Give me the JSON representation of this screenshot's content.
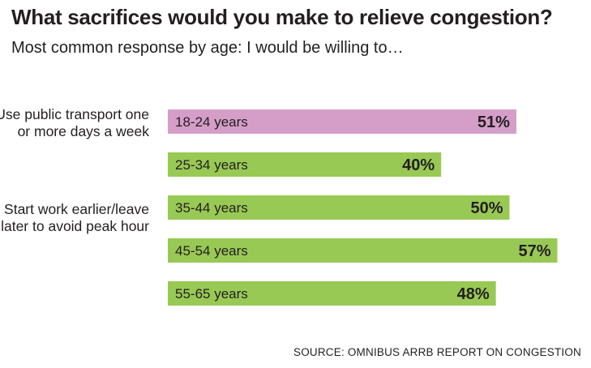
{
  "header": {
    "title": "What sacrifices would you make to relieve congestion?",
    "subtitle": "Most common response by age: I would be willing to…"
  },
  "groups": [
    {
      "label": "Use public transport one or more days a week"
    },
    {
      "label": "Start work earlier/leave later to avoid peak hour"
    }
  ],
  "source": "SOURCE: OMNIBUS ARRB REPORT ON CONGESTION",
  "colors": {
    "highlight": "#d59ec8",
    "default": "#99c955",
    "text": "#231f20"
  },
  "chart_data": {
    "type": "bar",
    "orientation": "horizontal",
    "categories": [
      "18-24 years",
      "25-34 years",
      "35-44 years",
      "45-54 years",
      "55-65 years"
    ],
    "values": [
      51,
      40,
      50,
      57,
      48
    ],
    "value_labels": [
      "51%",
      "40%",
      "50%",
      "57%",
      "48%"
    ],
    "highlight_index": 0,
    "xlim": [
      0,
      100
    ],
    "grid": false,
    "legend": "none"
  }
}
